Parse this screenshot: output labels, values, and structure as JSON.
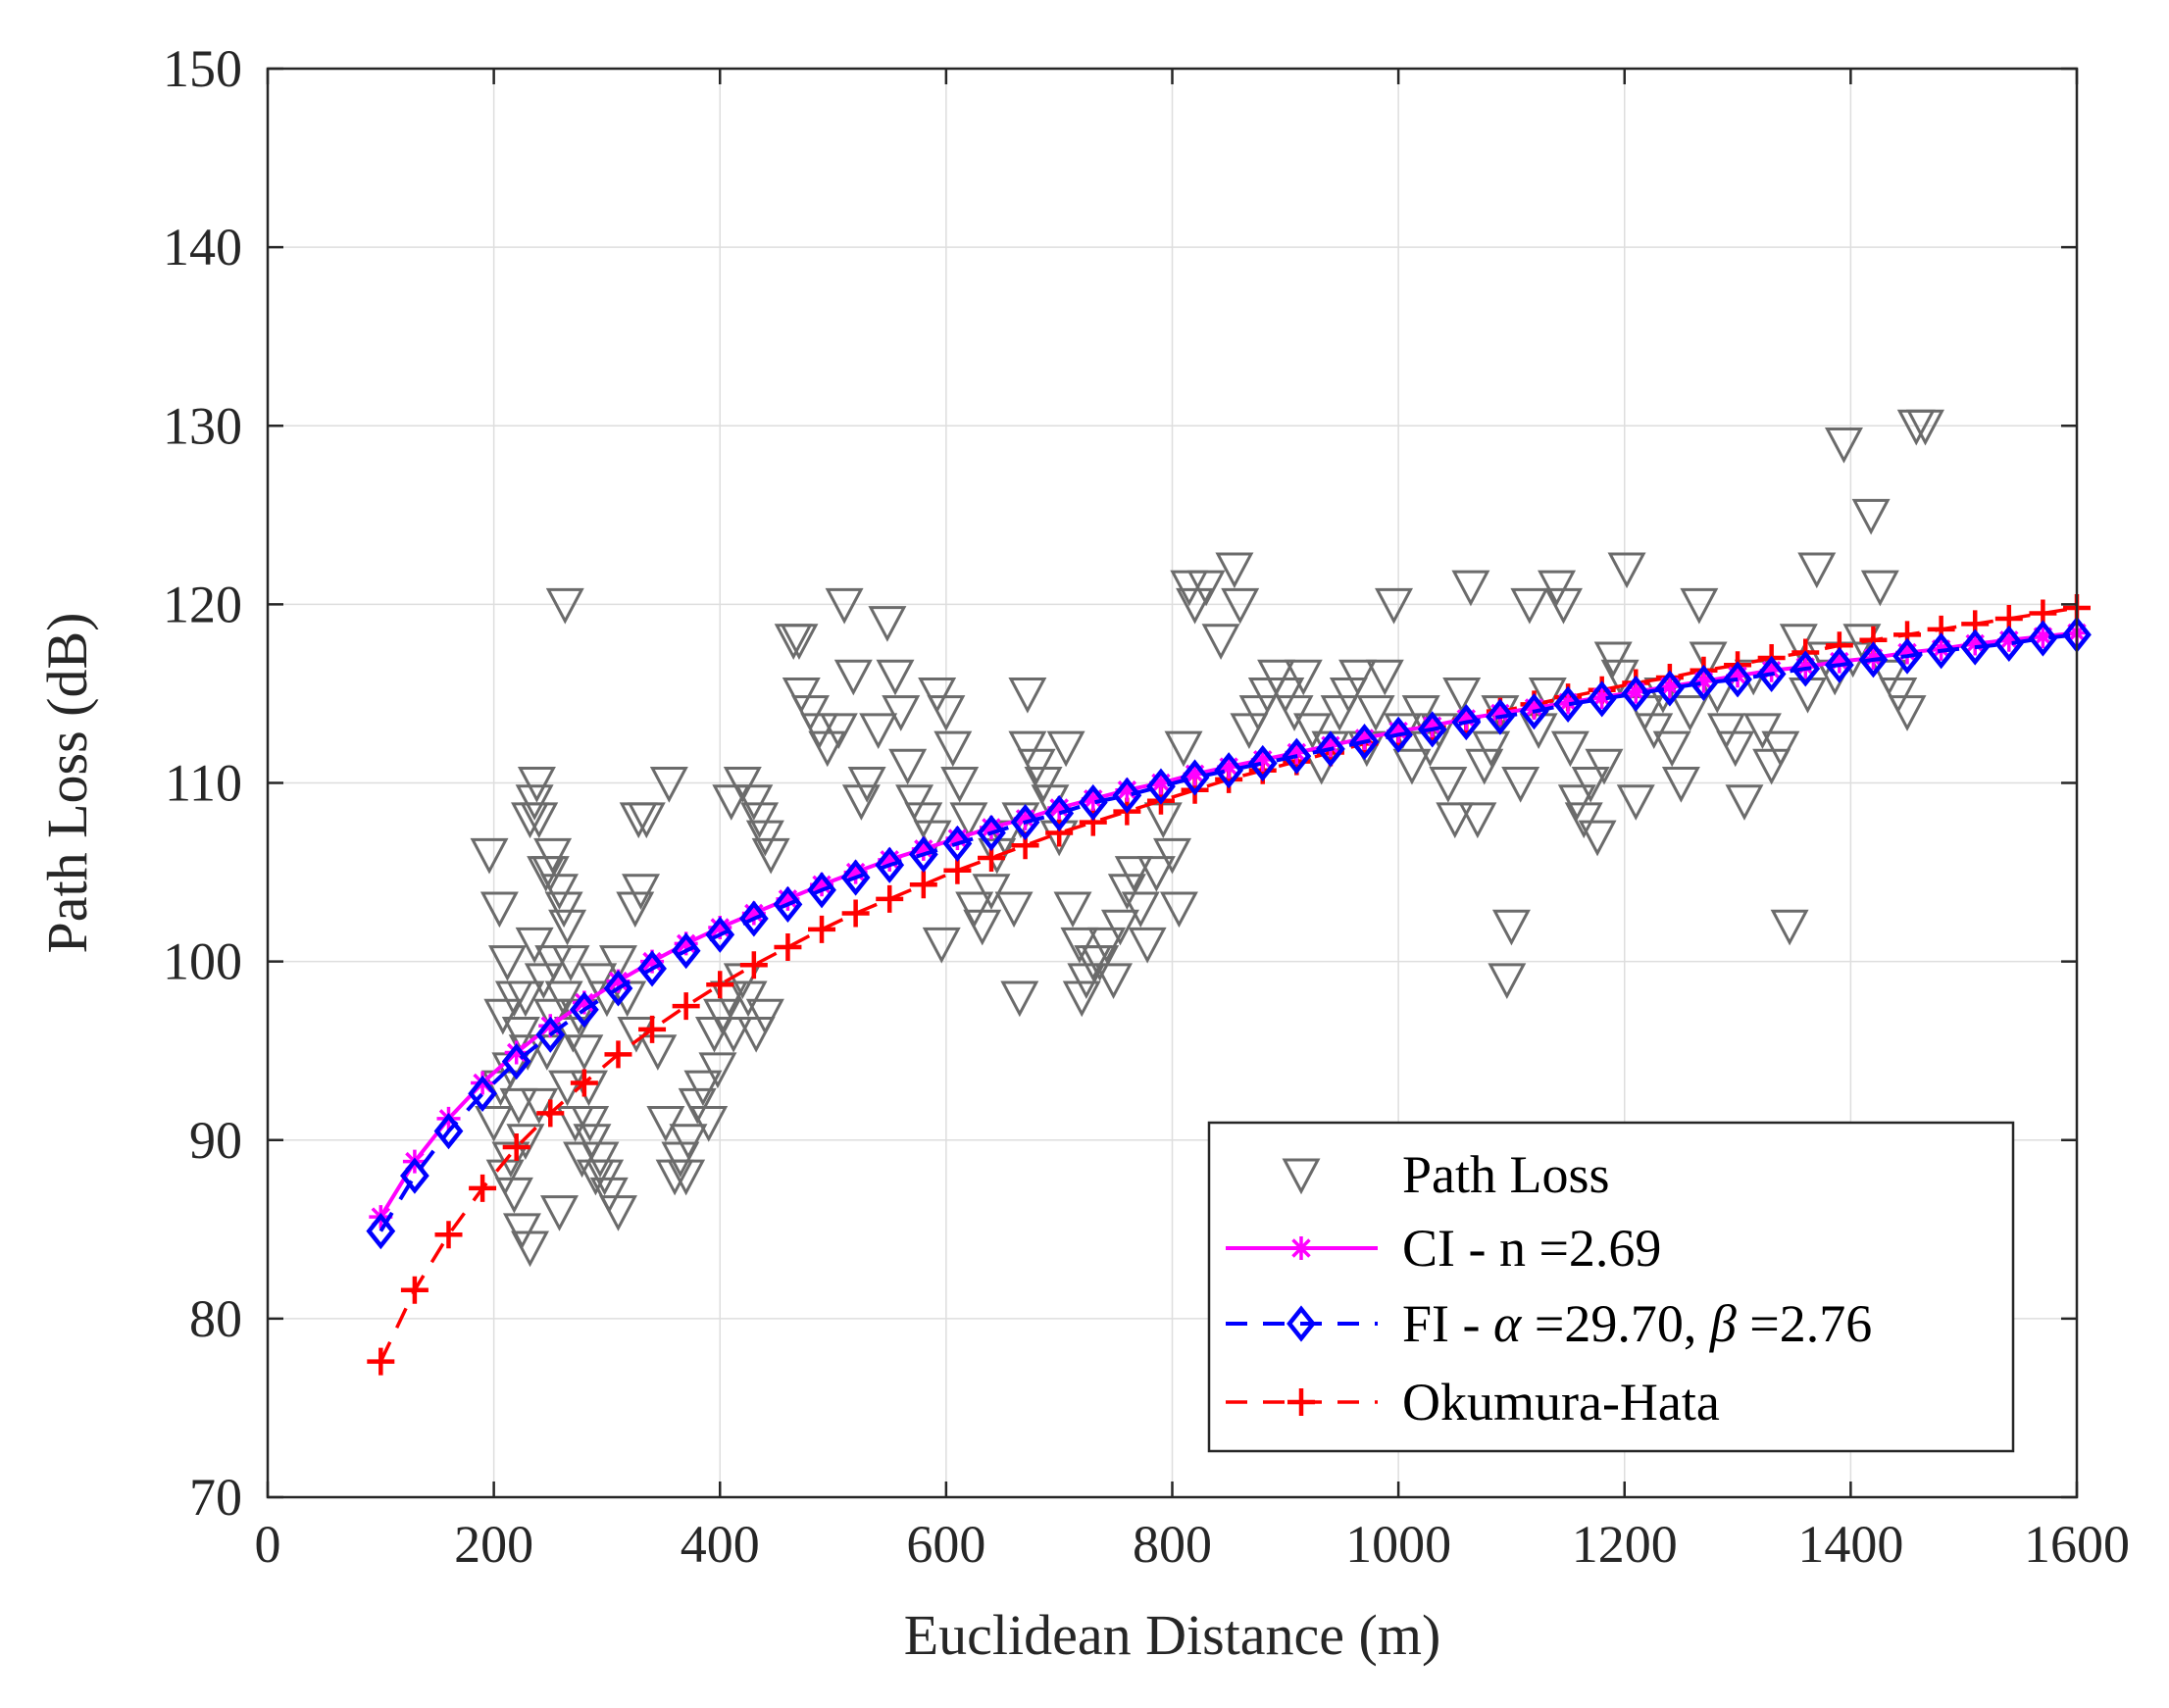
{
  "chart_data": {
    "type": "scatter",
    "xlabel": "Euclidean Distance (m)",
    "ylabel": "Path Loss (dB)",
    "xlim": [
      0,
      1600
    ],
    "ylim": [
      70,
      150
    ],
    "xticks": [
      0,
      200,
      400,
      600,
      800,
      1000,
      1200,
      1400,
      1600
    ],
    "yticks": [
      70,
      80,
      90,
      100,
      110,
      120,
      130,
      140,
      150
    ],
    "grid": true,
    "legend_position": "bottom-right",
    "legend": {
      "path_loss": "Path Loss",
      "ci_label": "CI - n =2.69",
      "fi_prefix": "FI - ",
      "fi_alpha": "α",
      "fi_mid": " =29.70, ",
      "fi_beta": "β",
      "fi_suffix": " =2.76",
      "okumura": "Okumura-Hata"
    },
    "series": [
      {
        "name": "Path Loss",
        "marker": "triangle-down",
        "color": "#6b6b6b",
        "points": [
          [
            196,
            106
          ],
          [
            205,
            103
          ],
          [
            212,
            100
          ],
          [
            218,
            98
          ],
          [
            224,
            96
          ],
          [
            208,
            97
          ],
          [
            215,
            94
          ],
          [
            222,
            92
          ],
          [
            228,
            90
          ],
          [
            210,
            88
          ],
          [
            218,
            87
          ],
          [
            225,
            85
          ],
          [
            232,
            84
          ],
          [
            240,
            92
          ],
          [
            247,
            95
          ],
          [
            252,
            97
          ],
          [
            200,
            91
          ],
          [
            206,
            93
          ],
          [
            215,
            89
          ],
          [
            230,
            95
          ],
          [
            244,
            99
          ],
          [
            236,
            101
          ],
          [
            228,
            98
          ],
          [
            253,
            100
          ],
          [
            262,
            98
          ],
          [
            270,
            96
          ],
          [
            265,
            102
          ],
          [
            258,
            104
          ],
          [
            252,
            106
          ],
          [
            246,
            105
          ],
          [
            240,
            108
          ],
          [
            236,
            109
          ],
          [
            232,
            108
          ],
          [
            238,
            110
          ],
          [
            250,
            105
          ],
          [
            262,
            103
          ],
          [
            268,
            100
          ],
          [
            275,
            97
          ],
          [
            280,
            95
          ],
          [
            284,
            93
          ],
          [
            287,
            90
          ],
          [
            290,
            88
          ],
          [
            294,
            89
          ],
          [
            298,
            88
          ],
          [
            302,
            87
          ],
          [
            310,
            86
          ],
          [
            258,
            86
          ],
          [
            265,
            93
          ],
          [
            272,
            91
          ],
          [
            278,
            89
          ],
          [
            285,
            91
          ],
          [
            292,
            99
          ],
          [
            300,
            98
          ],
          [
            310,
            100
          ],
          [
            318,
            98
          ],
          [
            326,
            96
          ],
          [
            330,
            104
          ],
          [
            325,
            103
          ],
          [
            335,
            108
          ],
          [
            328,
            108
          ],
          [
            345,
            95
          ],
          [
            352,
            91
          ],
          [
            360,
            88
          ],
          [
            365,
            89
          ],
          [
            370,
            88
          ],
          [
            372,
            90
          ],
          [
            380,
            92
          ],
          [
            385,
            93
          ],
          [
            390,
            91
          ],
          [
            395,
            96
          ],
          [
            398,
            94
          ],
          [
            402,
            97
          ],
          [
            408,
            98
          ],
          [
            412,
            96
          ],
          [
            420,
            99
          ],
          [
            425,
            98
          ],
          [
            432,
            96
          ],
          [
            440,
            97
          ],
          [
            355,
            110
          ],
          [
            263,
            120
          ],
          [
            410,
            109
          ],
          [
            420,
            110
          ],
          [
            430,
            109
          ],
          [
            435,
            108
          ],
          [
            440,
            107
          ],
          [
            445,
            106
          ],
          [
            465,
            118
          ],
          [
            470,
            118
          ],
          [
            472,
            115
          ],
          [
            480,
            114
          ],
          [
            488,
            113
          ],
          [
            495,
            112
          ],
          [
            505,
            113
          ],
          [
            510,
            120
          ],
          [
            518,
            116
          ],
          [
            525,
            109
          ],
          [
            530,
            110
          ],
          [
            540,
            113
          ],
          [
            548,
            119
          ],
          [
            555,
            116
          ],
          [
            560,
            114
          ],
          [
            566,
            111
          ],
          [
            572,
            109
          ],
          [
            580,
            108
          ],
          [
            588,
            107
          ],
          [
            592,
            115
          ],
          [
            600,
            114
          ],
          [
            606,
            112
          ],
          [
            612,
            110
          ],
          [
            620,
            108
          ],
          [
            625,
            103
          ],
          [
            632,
            102
          ],
          [
            640,
            104
          ],
          [
            645,
            106
          ],
          [
            652,
            107
          ],
          [
            660,
            103
          ],
          [
            666,
            108
          ],
          [
            672,
            112
          ],
          [
            680,
            111
          ],
          [
            686,
            110
          ],
          [
            692,
            109
          ],
          [
            700,
            107
          ],
          [
            706,
            112
          ],
          [
            712,
            103
          ],
          [
            718,
            101
          ],
          [
            724,
            99
          ],
          [
            730,
            100
          ],
          [
            736,
            100
          ],
          [
            742,
            101
          ],
          [
            748,
            99
          ],
          [
            754,
            102
          ],
          [
            760,
            104
          ],
          [
            766,
            105
          ],
          [
            772,
            103
          ],
          [
            778,
            101
          ],
          [
            786,
            105
          ],
          [
            792,
            108
          ],
          [
            800,
            106
          ],
          [
            806,
            103
          ],
          [
            596,
            101
          ],
          [
            665,
            98
          ],
          [
            720,
            98
          ],
          [
            672,
            115
          ],
          [
            810,
            112
          ],
          [
            815,
            121
          ],
          [
            820,
            120
          ],
          [
            830,
            121
          ],
          [
            843,
            118
          ],
          [
            855,
            122
          ],
          [
            860,
            120
          ],
          [
            868,
            113
          ],
          [
            876,
            114
          ],
          [
            884,
            115
          ],
          [
            892,
            116
          ],
          [
            900,
            115
          ],
          [
            908,
            114
          ],
          [
            916,
            116
          ],
          [
            924,
            113
          ],
          [
            932,
            111
          ],
          [
            940,
            112
          ],
          [
            948,
            114
          ],
          [
            956,
            115
          ],
          [
            964,
            116
          ],
          [
            972,
            112
          ],
          [
            980,
            114
          ],
          [
            988,
            116
          ],
          [
            996,
            120
          ],
          [
            1004,
            113
          ],
          [
            1012,
            111
          ],
          [
            1020,
            114
          ],
          [
            1028,
            112
          ],
          [
            1036,
            113
          ],
          [
            1044,
            110
          ],
          [
            1050,
            108
          ],
          [
            1056,
            115
          ],
          [
            1064,
            121
          ],
          [
            1070,
            108
          ],
          [
            1076,
            111
          ],
          [
            1082,
            112
          ],
          [
            1090,
            114
          ],
          [
            1096,
            99
          ],
          [
            1100,
            102
          ],
          [
            1108,
            110
          ],
          [
            1116,
            120
          ],
          [
            1124,
            113
          ],
          [
            1132,
            115
          ],
          [
            1140,
            121
          ],
          [
            1146,
            120
          ],
          [
            1152,
            112
          ],
          [
            1158,
            109
          ],
          [
            1164,
            108
          ],
          [
            1170,
            110
          ],
          [
            1176,
            107
          ],
          [
            1182,
            111
          ],
          [
            1190,
            117
          ],
          [
            1196,
            116
          ],
          [
            1202,
            122
          ],
          [
            1210,
            109
          ],
          [
            1218,
            114
          ],
          [
            1226,
            113
          ],
          [
            1234,
            115
          ],
          [
            1242,
            112
          ],
          [
            1250,
            110
          ],
          [
            1258,
            114
          ],
          [
            1266,
            120
          ],
          [
            1274,
            117
          ],
          [
            1282,
            115
          ],
          [
            1290,
            113
          ],
          [
            1298,
            112
          ],
          [
            1306,
            109
          ],
          [
            1314,
            116
          ],
          [
            1322,
            113
          ],
          [
            1330,
            111
          ],
          [
            1338,
            112
          ],
          [
            1346,
            102
          ],
          [
            1354,
            118
          ],
          [
            1362,
            115
          ],
          [
            1370,
            122
          ],
          [
            1378,
            117
          ],
          [
            1386,
            116
          ],
          [
            1394,
            129
          ],
          [
            1402,
            117
          ],
          [
            1410,
            118
          ],
          [
            1418,
            125
          ],
          [
            1426,
            121
          ],
          [
            1434,
            116
          ],
          [
            1442,
            115
          ],
          [
            1450,
            114
          ],
          [
            1458,
            130
          ],
          [
            1466,
            130
          ]
        ]
      },
      {
        "name": "CI - n =2.69",
        "marker": "asterisk",
        "line": "solid",
        "color": "#ff00ff",
        "x": [
          100,
          130,
          160,
          190,
          220,
          250,
          280,
          310,
          340,
          370,
          400,
          430,
          460,
          490,
          520,
          550,
          580,
          610,
          640,
          670,
          700,
          730,
          760,
          790,
          820,
          850,
          880,
          910,
          940,
          970,
          1000,
          1030,
          1060,
          1090,
          1120,
          1150,
          1180,
          1210,
          1240,
          1270,
          1300,
          1330,
          1360,
          1390,
          1420,
          1450,
          1480,
          1510,
          1540,
          1570,
          1600
        ],
        "y": [
          85.7,
          88.8,
          91.2,
          93.2,
          94.9,
          96.4,
          97.7,
          98.9,
          100.0,
          101.0,
          101.9,
          102.7,
          103.5,
          104.3,
          105.0,
          105.7,
          106.3,
          106.9,
          107.5,
          108.0,
          108.6,
          109.1,
          109.6,
          110.0,
          110.5,
          110.9,
          111.3,
          111.7,
          112.1,
          112.5,
          112.9,
          113.2,
          113.6,
          113.9,
          114.2,
          114.5,
          114.8,
          115.1,
          115.4,
          115.7,
          116.0,
          116.3,
          116.5,
          116.8,
          117.0,
          117.3,
          117.5,
          117.8,
          118.0,
          118.2,
          118.4
        ]
      },
      {
        "name": "FI - α =29.70, β =2.76",
        "marker": "diamond",
        "line": "dashed",
        "color": "#0000ff",
        "x": [
          100,
          130,
          160,
          190,
          220,
          250,
          280,
          310,
          340,
          370,
          400,
          430,
          460,
          490,
          520,
          550,
          580,
          610,
          640,
          670,
          700,
          730,
          760,
          790,
          820,
          850,
          880,
          910,
          940,
          970,
          1000,
          1030,
          1060,
          1090,
          1120,
          1150,
          1180,
          1210,
          1240,
          1270,
          1300,
          1330,
          1360,
          1390,
          1420,
          1450,
          1480,
          1510,
          1540,
          1570,
          1600
        ],
        "y": [
          84.9,
          88.0,
          90.5,
          92.6,
          94.4,
          95.9,
          97.3,
          98.5,
          99.6,
          100.6,
          101.5,
          102.4,
          103.2,
          104.0,
          104.7,
          105.4,
          106.0,
          106.6,
          107.2,
          107.8,
          108.3,
          108.9,
          109.3,
          109.8,
          110.3,
          110.7,
          111.1,
          111.5,
          111.9,
          112.3,
          112.7,
          113.0,
          113.4,
          113.7,
          114.0,
          114.4,
          114.7,
          115.0,
          115.3,
          115.6,
          115.8,
          116.1,
          116.4,
          116.6,
          116.9,
          117.1,
          117.4,
          117.6,
          117.8,
          118.1,
          118.3
        ]
      },
      {
        "name": "Okumura-Hata",
        "marker": "plus",
        "line": "dashed",
        "color": "#ff0000",
        "x": [
          100,
          130,
          160,
          190,
          220,
          250,
          280,
          310,
          340,
          370,
          400,
          430,
          460,
          490,
          520,
          550,
          580,
          610,
          640,
          670,
          700,
          730,
          760,
          790,
          820,
          850,
          880,
          910,
          940,
          970,
          1000,
          1030,
          1060,
          1090,
          1120,
          1150,
          1180,
          1210,
          1240,
          1270,
          1300,
          1330,
          1360,
          1390,
          1420,
          1450,
          1480,
          1510,
          1540,
          1570,
          1600
        ],
        "y": [
          77.6,
          81.6,
          84.7,
          87.3,
          89.6,
          91.5,
          93.2,
          94.8,
          96.2,
          97.5,
          98.7,
          99.8,
          100.8,
          101.8,
          102.7,
          103.5,
          104.3,
          105.1,
          105.8,
          106.5,
          107.2,
          107.8,
          108.4,
          109.0,
          109.6,
          110.2,
          110.7,
          111.2,
          111.7,
          112.2,
          112.7,
          113.1,
          113.5,
          114.0,
          114.4,
          114.8,
          115.2,
          115.6,
          115.9,
          116.3,
          116.6,
          117.0,
          117.3,
          117.7,
          118.0,
          118.3,
          118.6,
          118.9,
          119.2,
          119.5,
          119.8
        ]
      }
    ]
  }
}
